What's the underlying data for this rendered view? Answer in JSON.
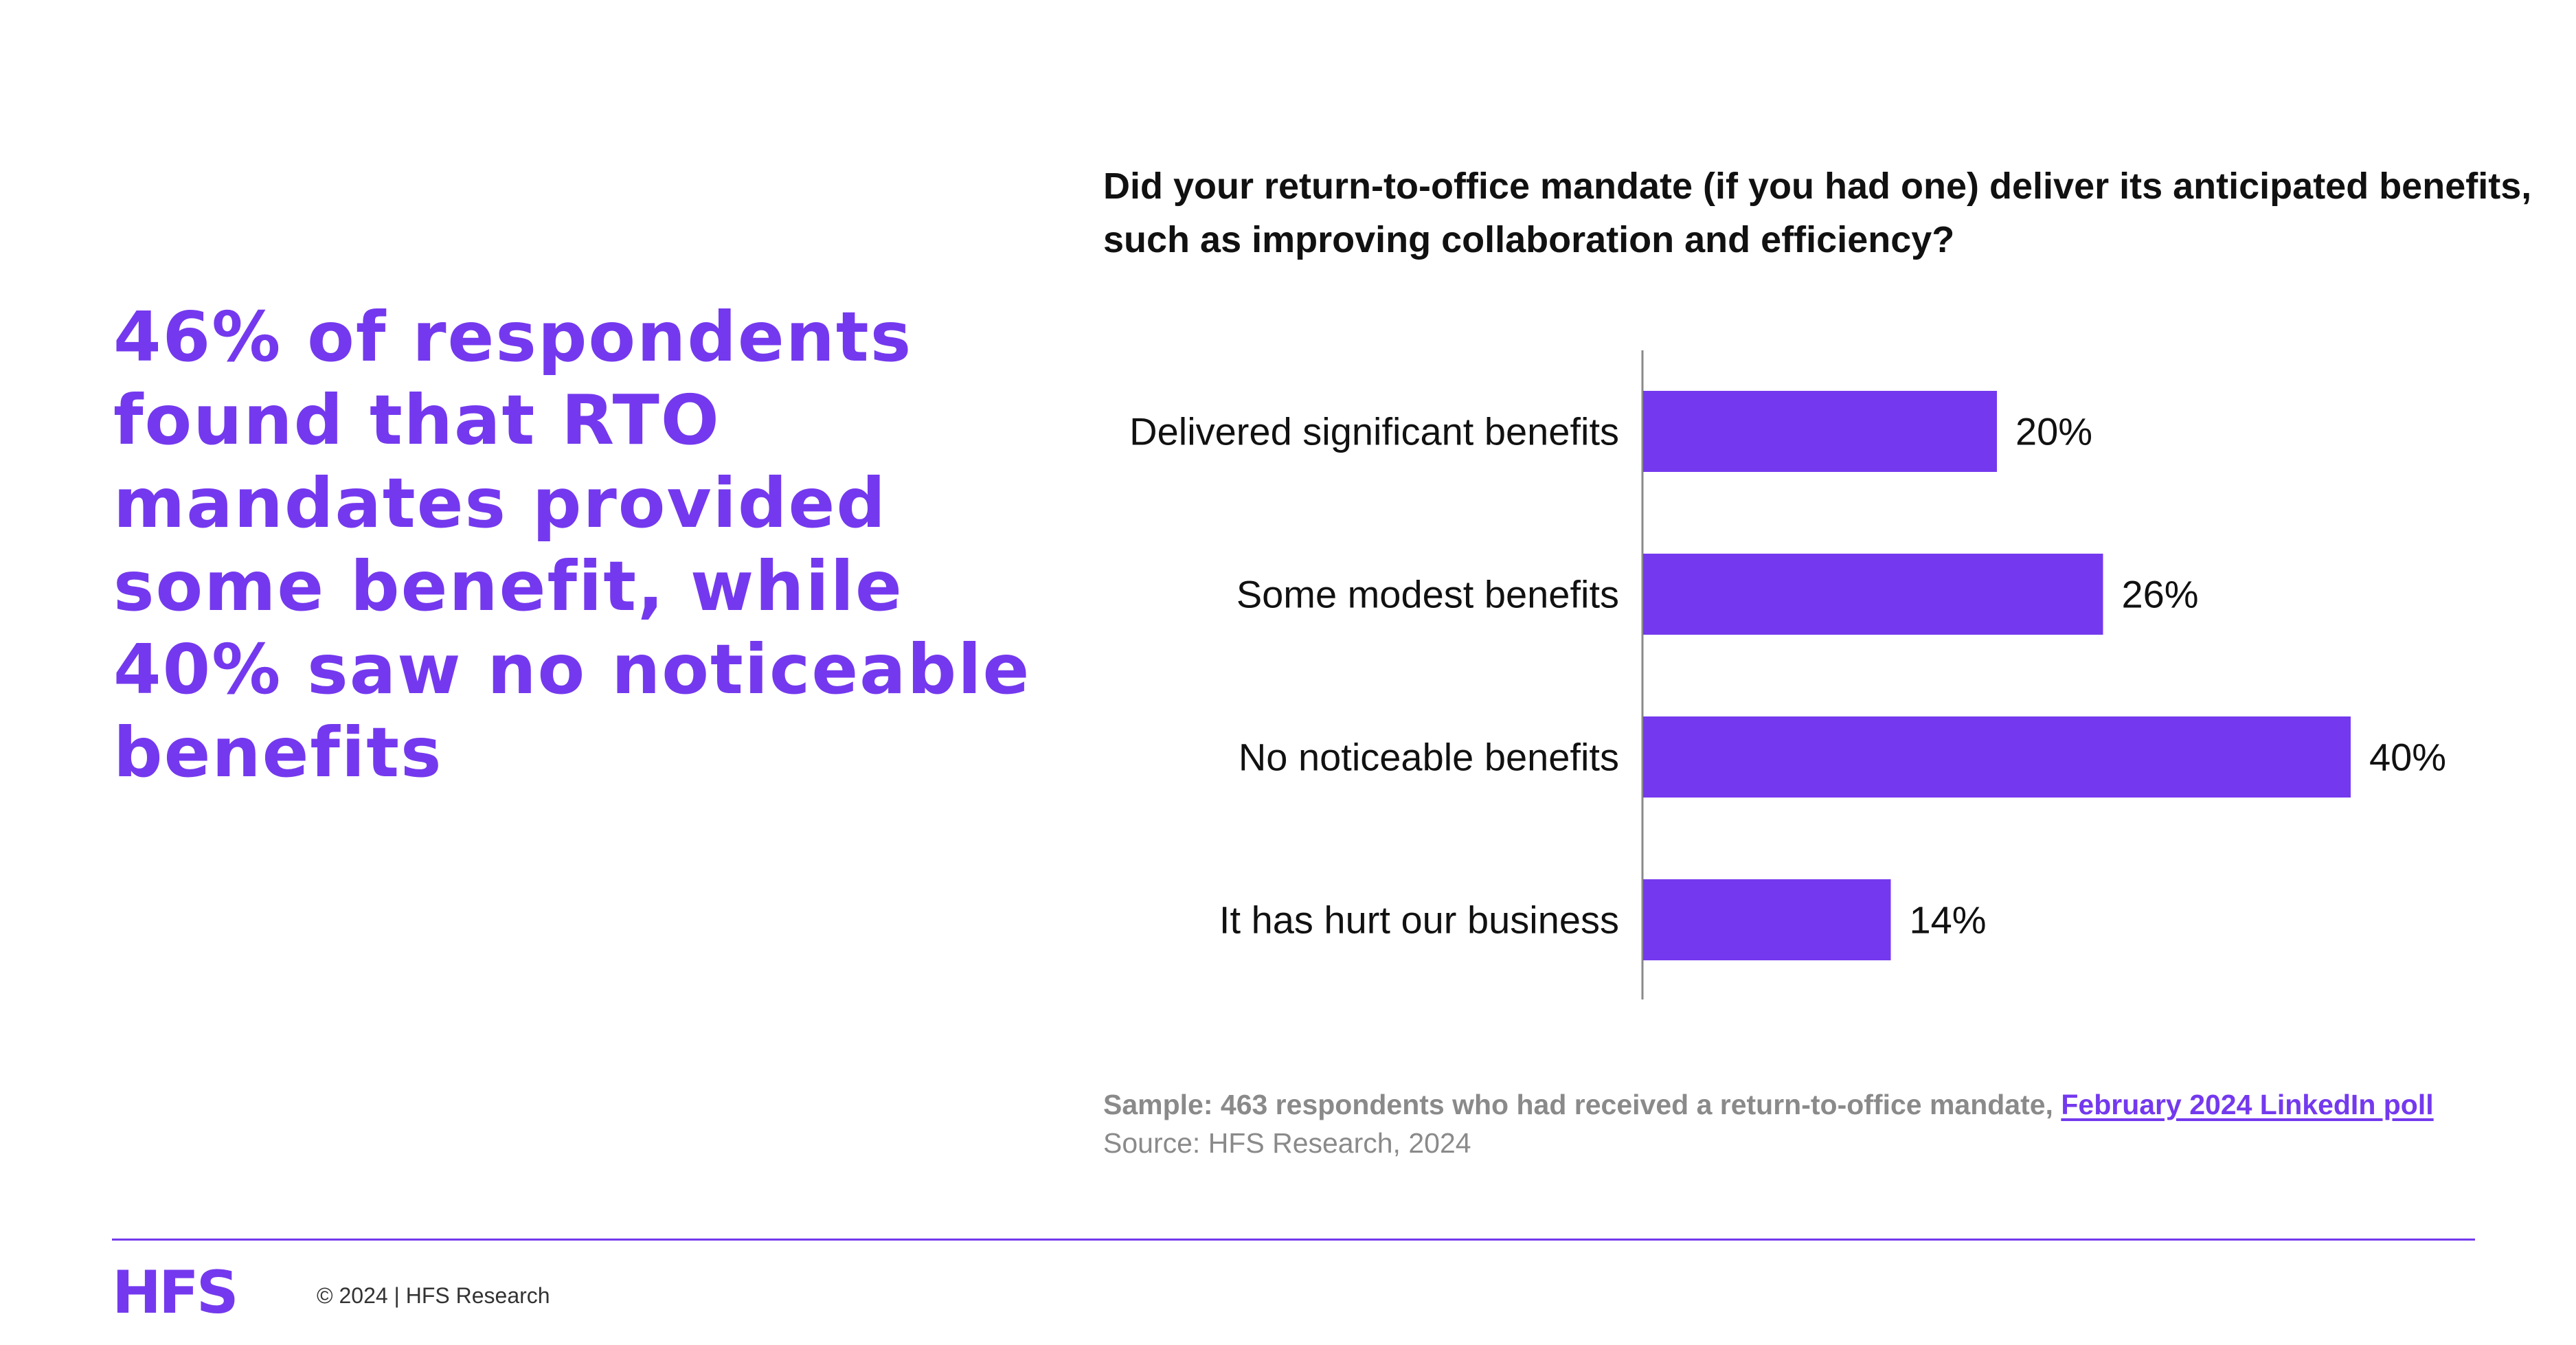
{
  "headline": "46% of respondents found that RTO mandates provided some benefit, while 40% saw no noticeable benefits",
  "chart_data": {
    "type": "bar",
    "orientation": "horizontal",
    "title": "Did your return-to-office mandate (if you had one) deliver its anticipated benefits, such as improving collaboration and efficiency?",
    "categories": [
      "Delivered significant benefits",
      "Some modest benefits",
      "No noticeable benefits",
      "It has hurt our business"
    ],
    "values": [
      20,
      26,
      40,
      14
    ],
    "value_labels": [
      "20%",
      "26%",
      "40%",
      "14%"
    ],
    "unit": "%",
    "xlim": [
      0,
      40
    ],
    "grid": false,
    "bar_color": "#7439ee",
    "axis_color": "#8a8a8a"
  },
  "footnote": {
    "sample": "Sample: 463 respondents who had received a return-to-office mandate,",
    "poll_link": "February 2024 LinkedIn poll",
    "source": "Source: HFS Research, 2024"
  },
  "footer": {
    "logo": "HFS",
    "copyright": "© 2024 | HFS Research"
  },
  "colors": {
    "accent": "#7439ee"
  }
}
